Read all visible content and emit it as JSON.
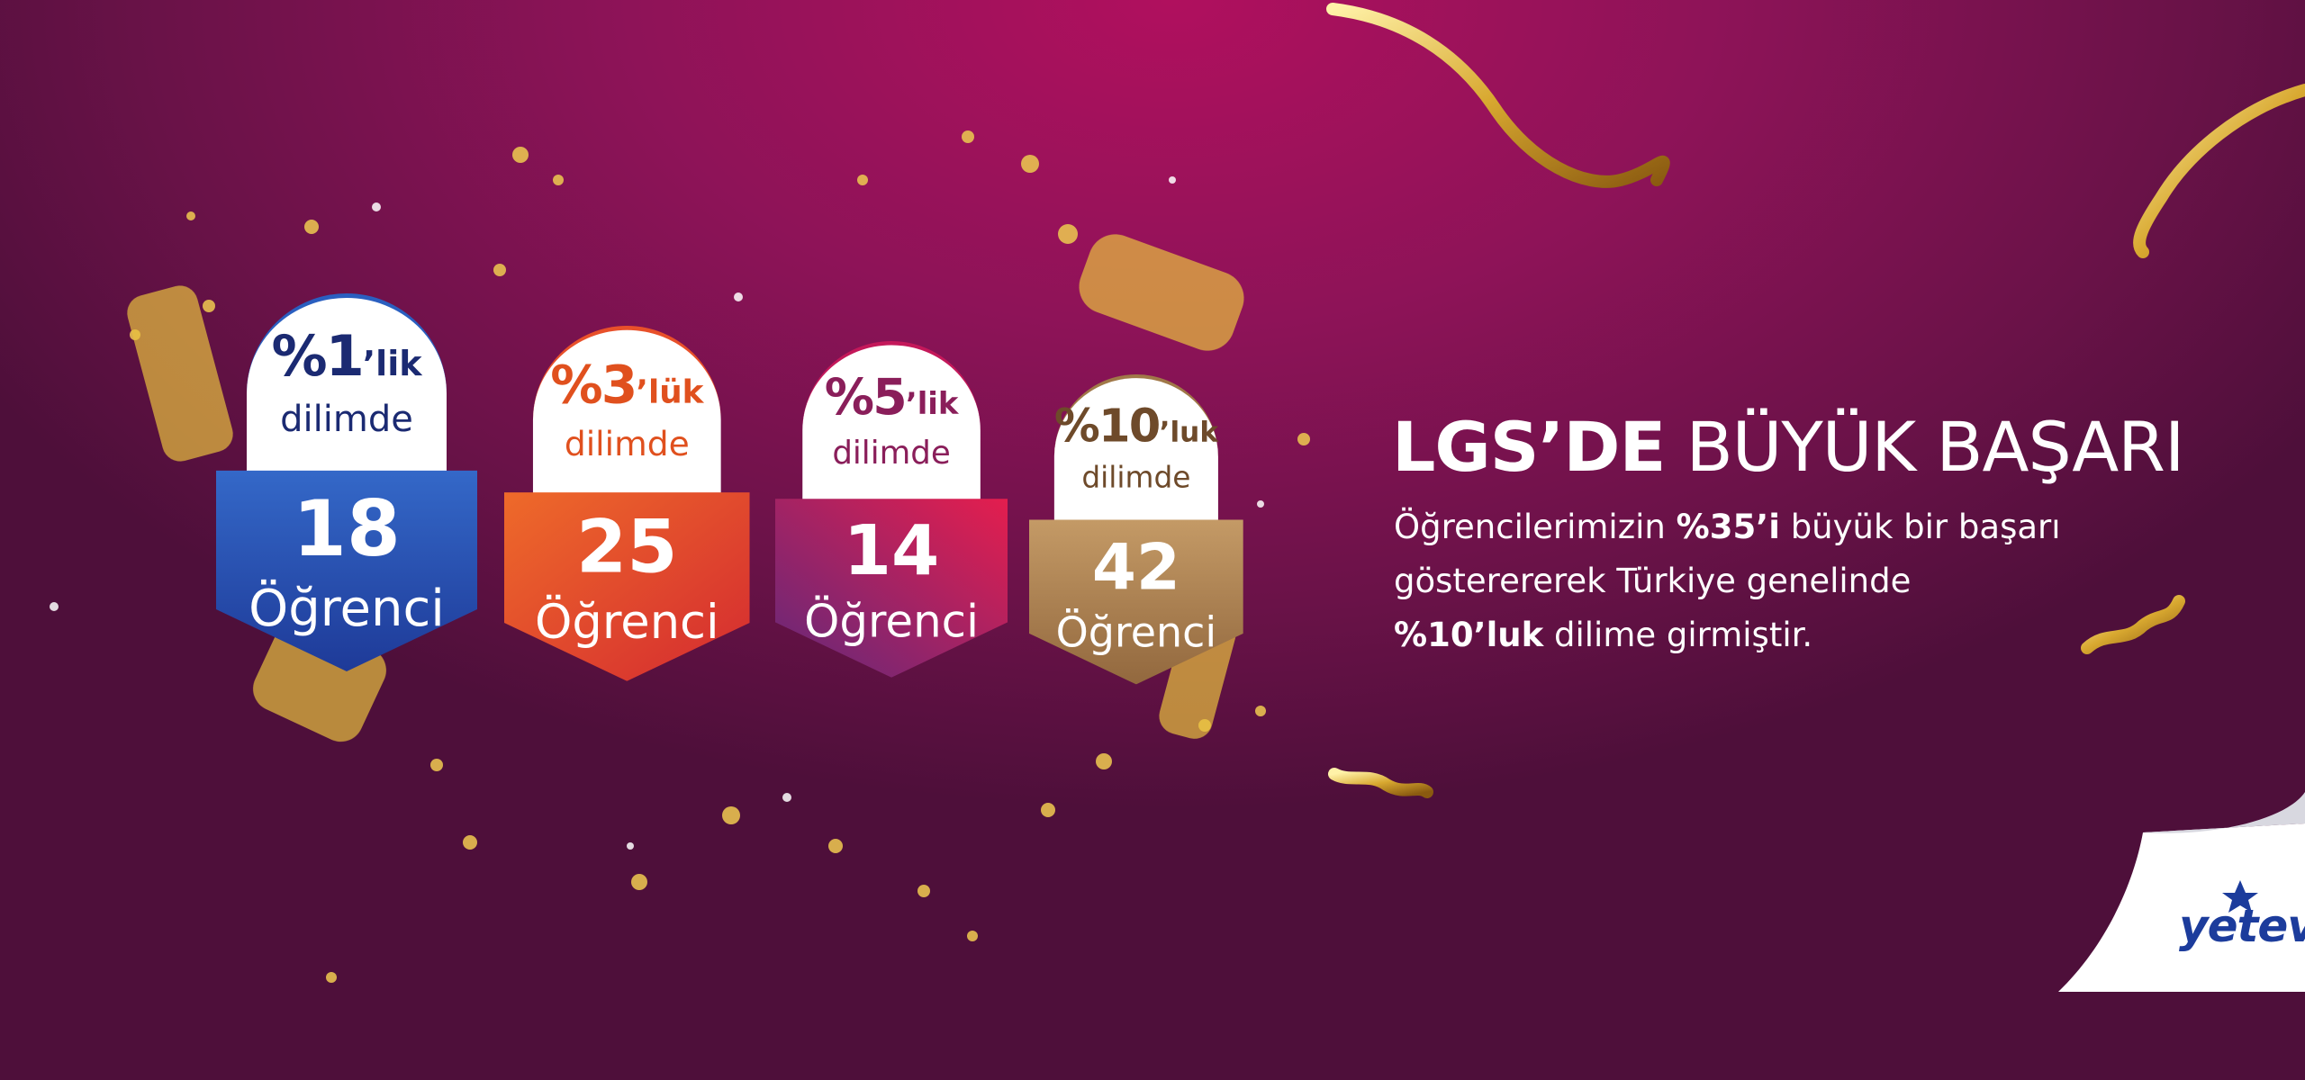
{
  "badges": [
    {
      "percent": "%1",
      "suffix": "’lik",
      "slice": "dilimde",
      "count": "18",
      "unit": "Öğrenci"
    },
    {
      "percent": "%3",
      "suffix": "’lük",
      "slice": "dilimde",
      "count": "25",
      "unit": "Öğrenci"
    },
    {
      "percent": "%5",
      "suffix": "’lik",
      "slice": "dilimde",
      "count": "14",
      "unit": "Öğrenci"
    },
    {
      "percent": "%10",
      "suffix": "’luk",
      "slice": "dilimde",
      "count": "42",
      "unit": "Öğrenci"
    }
  ],
  "headline": {
    "bold": "LGS’DE",
    "regular": "BÜYÜK BAŞARI"
  },
  "description": {
    "part1": "Öğrencilerimizin ",
    "bold1": "%35’i",
    "part2": " büyük bir başarı",
    "part3": "gösterererek Türkiye genelinde",
    "bold2": "%10’luk",
    "part4": " dilime girmiştir."
  },
  "logo": {
    "name": "yetev"
  }
}
